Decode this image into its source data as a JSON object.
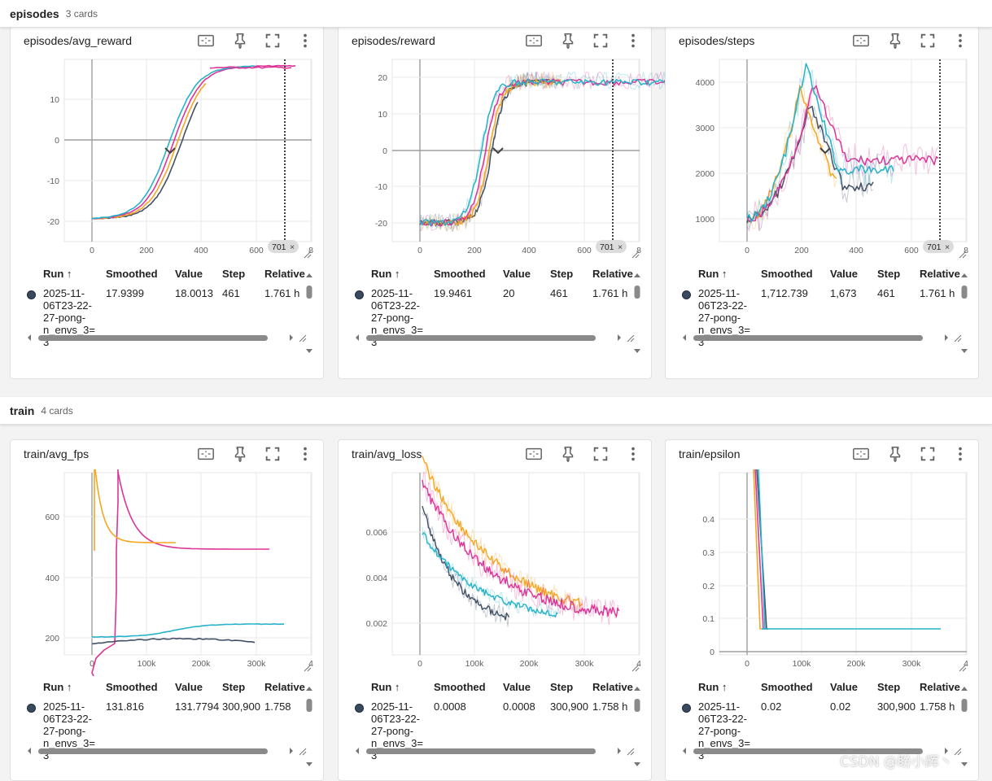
{
  "sections": [
    {
      "title": "episodes",
      "count": "3 cards"
    },
    {
      "title": "train",
      "count": "4 cards"
    }
  ],
  "table_headers": {
    "run": "Run ↑",
    "smoothed": "Smoothed",
    "value": "Value",
    "step": "Step",
    "relative": "Relative"
  },
  "run_name": "2025-11-06T23-22-27-pong-n_envs_3=3",
  "run_name_display": [
    "2025-11-",
    "06T23-22-",
    "27-pong-",
    "n_envs_3=3"
  ],
  "colors": {
    "slate": "#425066",
    "orange": "#f5a623",
    "pink": "#dd3497",
    "cyan": "#26b3c9",
    "grid": "#e0e0e0",
    "axis": "#9e9e9e"
  },
  "icons": [
    "fit-domain-icon",
    "pin-icon",
    "fullscreen-icon",
    "more-vert-icon",
    "chevron-down-icon",
    "sort-arrow-icon"
  ],
  "watermark": "CSDN @盼小辉丶",
  "cards": [
    {
      "title": "episodes/avg_reward",
      "smoothed": "17.9399",
      "value": "18.0013",
      "step": "461",
      "relative": "1.761 h",
      "x_ticks": [
        "0",
        "200",
        "400",
        "600",
        "8"
      ],
      "y_ticks": [
        "10",
        "0",
        "-10",
        "-20"
      ],
      "cursor_label": "701"
    },
    {
      "title": "episodes/reward",
      "smoothed": "19.9461",
      "value": "20",
      "step": "461",
      "relative": "1.761 h",
      "x_ticks": [
        "0",
        "200",
        "400",
        "600",
        "8"
      ],
      "y_ticks": [
        "20",
        "10",
        "0",
        "-10",
        "-20"
      ],
      "cursor_label": "701"
    },
    {
      "title": "episodes/steps",
      "smoothed": "1,712.739",
      "value": "1,673",
      "step": "461",
      "relative": "1.761 h",
      "x_ticks": [
        "0",
        "200",
        "400",
        "600",
        "8"
      ],
      "y_ticks": [
        "4000",
        "3000",
        "2000",
        "1000"
      ],
      "cursor_label": "701"
    },
    {
      "title": "train/avg_fps",
      "smoothed": "131.816",
      "value": "131.7794",
      "step": "300,900",
      "relative": "1.758",
      "x_ticks": [
        "0",
        "100k",
        "200k",
        "300k",
        "4"
      ],
      "y_ticks": [
        "600",
        "400",
        "200"
      ]
    },
    {
      "title": "train/avg_loss",
      "smoothed": "0.0008",
      "value": "0.0008",
      "step": "300,900",
      "relative": "1.758 h",
      "x_ticks": [
        "0",
        "100k",
        "200k",
        "300k",
        "4"
      ],
      "y_ticks": [
        "0.006",
        "0.004",
        "0.002"
      ]
    },
    {
      "title": "train/epsilon",
      "smoothed": "0.02",
      "value": "0.02",
      "step": "300,900",
      "relative": "1.758 h",
      "x_ticks": [
        "0",
        "100k",
        "200k",
        "300k",
        "4"
      ],
      "y_ticks": [
        "0.4",
        "0.3",
        "0.2",
        "0.1",
        "0"
      ]
    }
  ]
}
